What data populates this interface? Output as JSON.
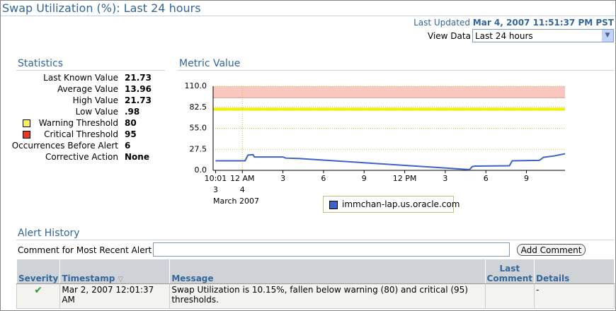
{
  "header": {
    "title": "Swap Utilization (%): Last 24 hours",
    "last_updated_label": "Last Updated",
    "last_updated": "Mar 4, 2007 11:51:37 PM PST",
    "view_data_label": "View Data",
    "view_data_value": "Last 24 hours"
  },
  "statistics": {
    "title": "Statistics",
    "rows": [
      {
        "label": "Last Known Value",
        "value": "21.73"
      },
      {
        "label": "Average Value",
        "value": "13.96"
      },
      {
        "label": "High Value",
        "value": "21.73"
      },
      {
        "label": "Low Value",
        "value": ".98"
      },
      {
        "label": "Warning Threshold",
        "value": "80"
      },
      {
        "label": "Critical Threshold",
        "value": "95"
      },
      {
        "label": "Occurrences Before Alert",
        "value": "6"
      },
      {
        "label": "Corrective Action",
        "value": "None"
      }
    ]
  },
  "chart_data": {
    "type": "line",
    "title": "Metric Value",
    "x": [
      -1.98,
      0.2,
      0.42,
      0.79,
      0.89,
      3.0,
      3.21,
      4.16,
      16.79,
      17.0,
      17.2,
      19.74,
      19.95,
      21.95,
      22.26,
      23.1,
      23.85
    ],
    "series": [
      {
        "name": "immchan-lap.us.oracle.com",
        "color": "#3c64c8",
        "values": [
          12.5,
          12.5,
          20,
          20.5,
          17.5,
          17.5,
          16,
          15.5,
          0.98,
          5,
          5.5,
          6,
          12.5,
          13,
          17,
          19,
          21.73
        ]
      }
    ],
    "xlim": [
      -2.16,
      23.85
    ],
    "ylim": [
      0,
      110
    ],
    "yticks": [
      {
        "value": 0,
        "label": "0.0"
      },
      27.5,
      {
        "value": 55,
        "label": "55.0"
      },
      82.5,
      {
        "value": 110,
        "label": "110.0"
      }
    ],
    "xticks": [
      {
        "value": -1.98,
        "label": "10:01"
      },
      {
        "value": 0,
        "label": "12 AM"
      },
      3,
      6,
      9,
      {
        "value": 12,
        "label": "12 PM"
      },
      {
        "value": 15,
        "label": "3"
      },
      {
        "value": 18,
        "label": "6"
      },
      {
        "value": 21,
        "label": "9"
      }
    ],
    "x_date_labels": [
      {
        "value": -1.98,
        "label": "3"
      },
      {
        "value": 0,
        "label": "4"
      }
    ],
    "x_axis_label": "March 2007",
    "warning_threshold": 80,
    "warning_color": "#f0f000",
    "critical_threshold": 95,
    "critical_color": "#f8c8c0",
    "grid": true
  },
  "alert_history": {
    "title": "Alert History",
    "comment_label": "Comment for Most Recent Alert",
    "button": "Add Comment",
    "columns": [
      "Severity",
      "Timestamp",
      "Message",
      "Last Comment",
      "Details"
    ],
    "rows": [
      {
        "timestamp": "Mar 2, 2007 12:01:37 AM",
        "message": "Swap Utilization is 10.15%, fallen below warning (80) and critical (95) thresholds.",
        "details": "-"
      }
    ]
  }
}
